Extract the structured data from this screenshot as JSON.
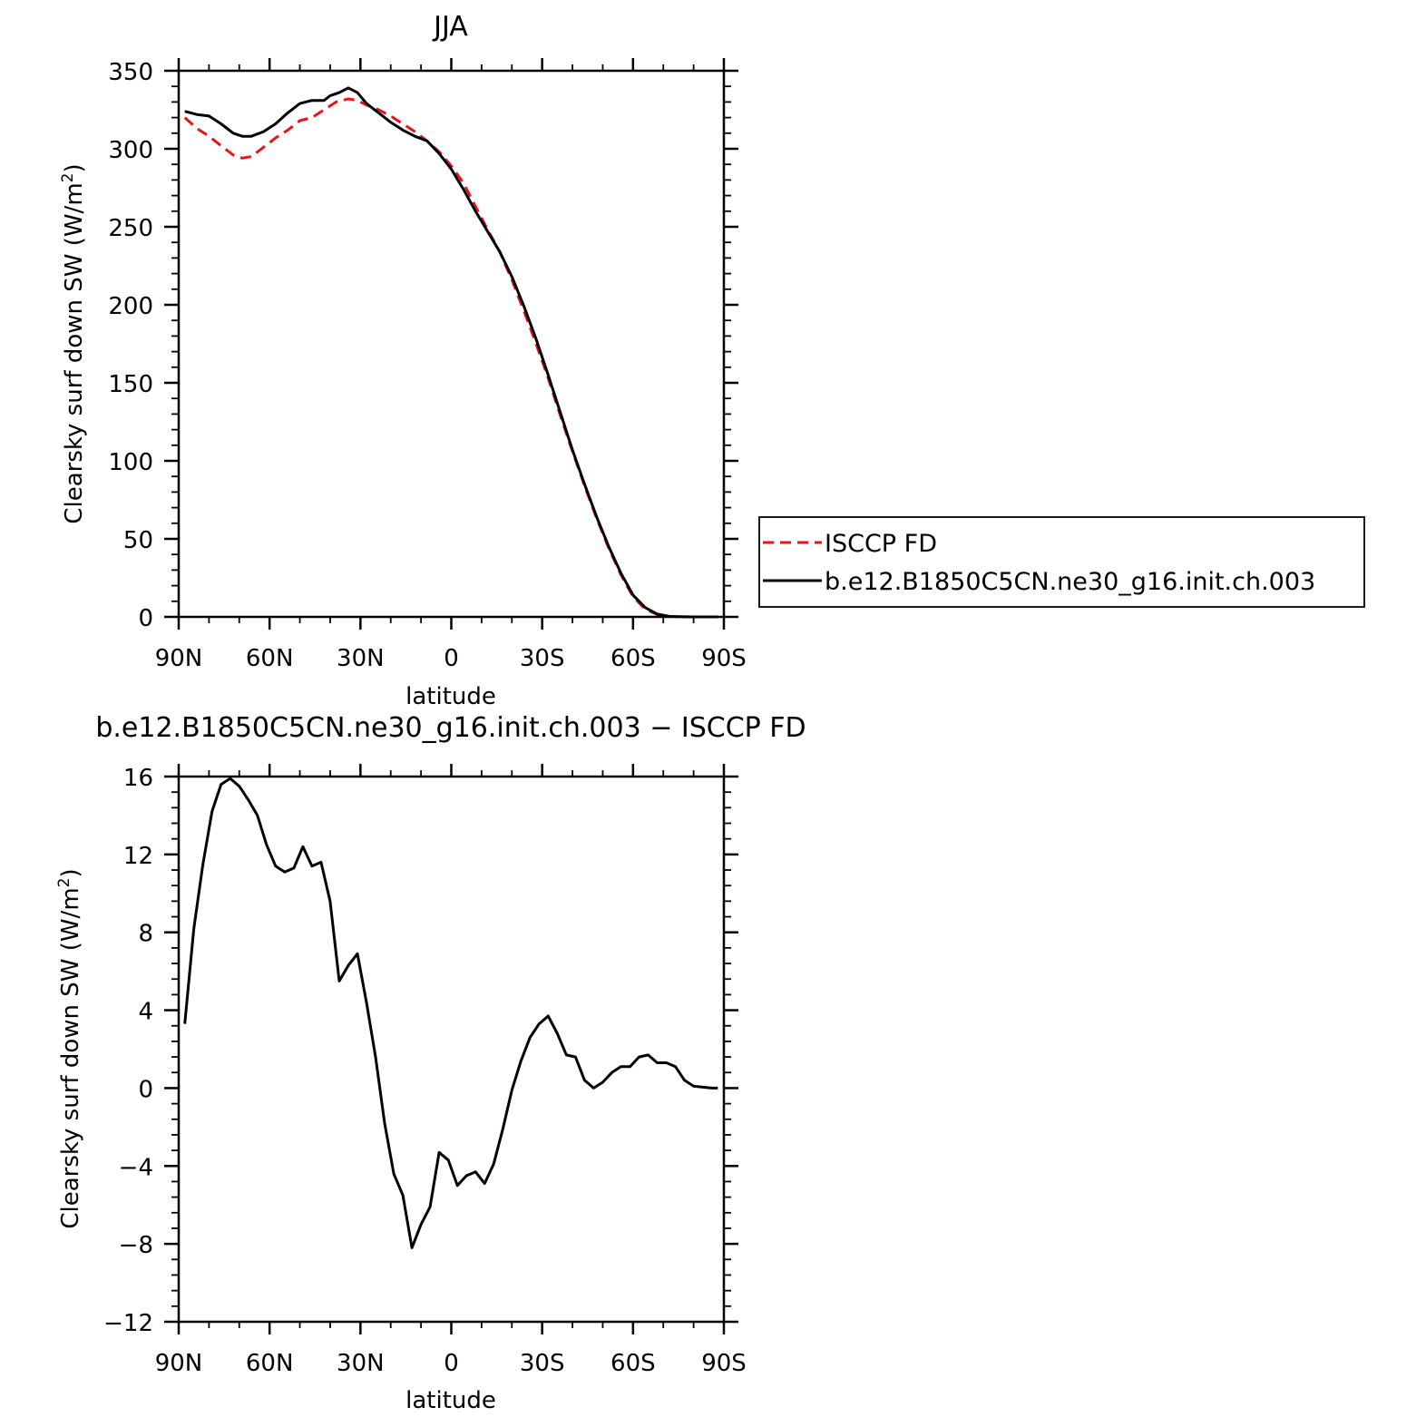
{
  "chart_data": [
    {
      "type": "line",
      "title": "JJA",
      "xlabel": "latitude",
      "ylabel": "Clearsky surf down SW (W/m",
      "ylabel_sup": "2",
      "ylabel_close": ")",
      "xlim": [
        -90,
        90
      ],
      "ylim": [
        0,
        350
      ],
      "xticks": [
        -90,
        -60,
        -30,
        0,
        30,
        60,
        90
      ],
      "xtick_labels": [
        "90N",
        "60N",
        "30N",
        "0",
        "30S",
        "60S",
        "90S"
      ],
      "yticks": [
        0,
        50,
        100,
        150,
        200,
        250,
        300,
        350
      ],
      "ytick_labels": [
        "0",
        "50",
        "100",
        "150",
        "200",
        "250",
        "300",
        "350"
      ],
      "grid": false,
      "legend": {
        "position": "right",
        "entries": [
          "ISCCP FD",
          "b.e12.B1850C5CN.ne30_g16.init.ch.003"
        ]
      },
      "series": [
        {
          "name": "ISCCP FD",
          "color": "#e8151b",
          "dash": "dashed",
          "x": [
            -88,
            -84,
            -80,
            -76,
            -72,
            -69,
            -66,
            -62,
            -58,
            -54,
            -50,
            -46,
            -42,
            -38,
            -34,
            -31,
            -28,
            -24,
            -20,
            -16,
            -12,
            -8,
            -4,
            0,
            4,
            8,
            12,
            16,
            20,
            24,
            28,
            32,
            36,
            40,
            44,
            48,
            52,
            56,
            60,
            64,
            68,
            72,
            76,
            80,
            84,
            88
          ],
          "y": [
            320,
            313,
            308,
            302,
            296,
            294,
            295,
            301,
            307,
            312,
            318,
            320,
            325,
            330,
            332,
            331,
            328,
            325,
            321,
            316,
            311,
            305,
            298,
            289,
            278,
            263,
            248,
            234,
            216,
            196,
            175,
            153,
            129,
            106,
            84,
            63,
            44,
            27,
            13,
            5,
            1.5,
            0.3,
            0.1,
            0,
            0,
            0
          ]
        },
        {
          "name": "b.e12.B1850C5CN.ne30_g16.init.ch.003",
          "color": "#000000",
          "dash": "solid",
          "x": [
            -88,
            -84,
            -80,
            -76,
            -72,
            -69,
            -66,
            -62,
            -58,
            -54,
            -50,
            -46,
            -42,
            -40,
            -37,
            -34,
            -31,
            -28,
            -24,
            -20,
            -16,
            -12,
            -8,
            -4,
            0,
            4,
            8,
            12,
            16,
            20,
            24,
            28,
            32,
            36,
            40,
            44,
            48,
            52,
            56,
            60,
            64,
            68,
            72,
            76,
            80,
            84,
            88
          ],
          "y": [
            324,
            322,
            321,
            316,
            310,
            308,
            308,
            311,
            316,
            323,
            329,
            331,
            331,
            334,
            336,
            339,
            336,
            329,
            323,
            317,
            312,
            308,
            305,
            297,
            287,
            274,
            260,
            247,
            234,
            218,
            199,
            178,
            155,
            131,
            107,
            85,
            64,
            45,
            28,
            14,
            6,
            1.8,
            0.3,
            0.1,
            0,
            0,
            0
          ]
        }
      ]
    },
    {
      "type": "line",
      "title": "b.e12.B1850C5CN.ne30_g16.init.ch.003 − ISCCP FD",
      "xlabel": "latitude",
      "ylabel": "Clearsky surf down SW (W/m",
      "ylabel_sup": "2",
      "ylabel_close": ")",
      "xlim": [
        -90,
        90
      ],
      "ylim": [
        -12,
        16
      ],
      "xticks": [
        -90,
        -60,
        -30,
        0,
        30,
        60,
        90
      ],
      "xtick_labels": [
        "90N",
        "60N",
        "30N",
        "0",
        "30S",
        "60S",
        "90S"
      ],
      "yticks": [
        -12,
        -8,
        -4,
        0,
        4,
        8,
        12,
        16
      ],
      "ytick_labels": [
        "−12",
        "−8",
        "−4",
        "0",
        "4",
        "8",
        "12",
        "16"
      ],
      "grid": false,
      "series": [
        {
          "color": "#000000",
          "dash": "solid",
          "x": [
            -88,
            -85,
            -82,
            -79,
            -76,
            -73,
            -70,
            -67,
            -64,
            -61,
            -58,
            -55,
            -52,
            -49,
            -46,
            -43,
            -40,
            -37,
            -34,
            -31,
            -28,
            -25,
            -22,
            -19,
            -16,
            -13,
            -10,
            -7,
            -4,
            -1,
            2,
            5,
            8,
            11,
            14,
            17,
            20,
            23,
            26,
            29,
            32,
            35,
            38,
            41,
            44,
            47,
            50,
            53,
            56,
            59,
            62,
            65,
            68,
            71,
            74,
            77,
            80,
            83,
            86,
            88
          ],
          "y": [
            3.3,
            8.2,
            11.5,
            14.2,
            15.6,
            15.9,
            15.5,
            14.8,
            14.0,
            12.5,
            11.4,
            11.1,
            11.3,
            12.4,
            11.4,
            11.6,
            9.6,
            5.5,
            6.3,
            6.9,
            4.4,
            1.6,
            -1.8,
            -4.4,
            -5.5,
            -8.2,
            -7.0,
            -6.1,
            -3.3,
            -3.7,
            -5.0,
            -4.5,
            -4.3,
            -4.9,
            -3.9,
            -2.1,
            -0.1,
            1.4,
            2.6,
            3.3,
            3.7,
            2.8,
            1.7,
            1.6,
            0.4,
            0.0,
            0.3,
            0.8,
            1.1,
            1.1,
            1.6,
            1.7,
            1.3,
            1.3,
            1.1,
            0.4,
            0.1,
            0.05,
            0.0,
            0.0
          ]
        }
      ]
    }
  ]
}
